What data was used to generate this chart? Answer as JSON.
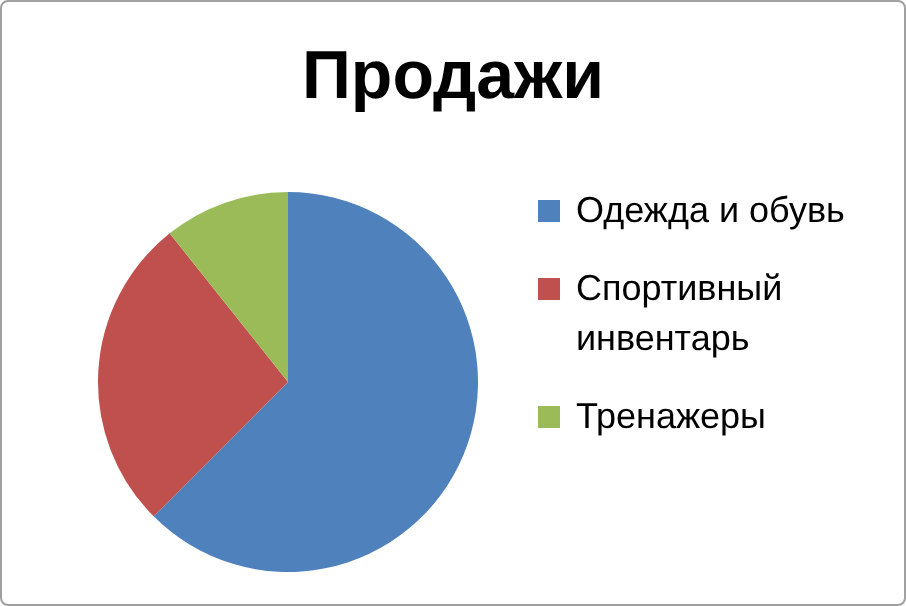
{
  "chart_data": {
    "type": "pie",
    "title": "Продажи",
    "categories": [
      "Одежда и обувь",
      "Спортивный инвентарь",
      "Тренажеры"
    ],
    "values": [
      62.5,
      26.8,
      10.7
    ],
    "colors": [
      "#4f81bd",
      "#c0504d",
      "#9bbb59"
    ],
    "legend": "right"
  }
}
